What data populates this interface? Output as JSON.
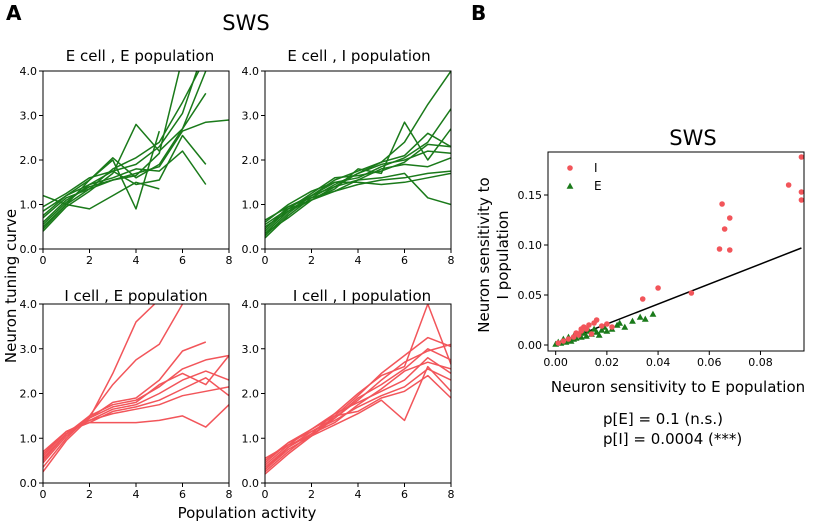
{
  "figure": {
    "panel_a_letter": "A",
    "panel_b_letter": "B",
    "panel_a_title": "SWS",
    "panel_b_title": "SWS",
    "panel_a_ylabel": "Neuron tuning curve",
    "panel_a_xlabel": "Population activity",
    "panel_b_xlabel": "Neuron sensitivity to E population",
    "panel_b_ylabel_line1": "Neuron sensitivity to",
    "panel_b_ylabel_line2": "I population",
    "stat_e": "p[E] = 0.1 (n.s.)",
    "stat_i": "p[I] = 0.0004 (***)",
    "colors": {
      "E": "#1a7a1a",
      "I": "#f2555a",
      "fit": "#000000"
    }
  },
  "chart_data": [
    {
      "type": "line",
      "title": "E cell , E population",
      "xlim": [
        0,
        8
      ],
      "ylim": [
        0,
        4
      ],
      "xticks": [
        "0",
        "2",
        "4",
        "6",
        "8"
      ],
      "yticks": [
        "0.0",
        "1.0",
        "2.0",
        "3.0",
        "4.0"
      ],
      "color": "E",
      "series": [
        {
          "x": [
            0,
            1,
            2,
            3,
            4,
            5,
            6,
            7
          ],
          "y": [
            0.45,
            1.0,
            1.35,
            1.8,
            2.05,
            2.4,
            3.3,
            4.3
          ]
        },
        {
          "x": [
            0,
            1,
            2,
            3,
            4,
            5,
            6,
            7
          ],
          "y": [
            0.55,
            1.05,
            1.45,
            1.75,
            1.9,
            2.3,
            3.05,
            4.6
          ]
        },
        {
          "x": [
            0,
            1,
            2,
            3,
            4,
            5,
            6
          ],
          "y": [
            0.6,
            1.1,
            1.4,
            1.55,
            1.65,
            2.15,
            4.3
          ]
        },
        {
          "x": [
            0,
            1,
            2,
            3,
            4,
            5,
            6,
            7,
            8
          ],
          "y": [
            0.7,
            1.15,
            1.35,
            1.55,
            1.7,
            1.85,
            2.65,
            2.85,
            2.9
          ]
        },
        {
          "x": [
            0,
            1,
            2,
            3,
            4,
            5,
            6,
            7
          ],
          "y": [
            0.75,
            1.2,
            1.45,
            1.6,
            1.8,
            1.75,
            2.2,
            1.45
          ]
        },
        {
          "x": [
            0,
            1,
            2,
            3,
            4,
            5
          ],
          "y": [
            0.85,
            1.2,
            1.55,
            2.0,
            0.9,
            2.65
          ]
        },
        {
          "x": [
            0,
            1,
            2,
            3,
            4,
            5,
            6,
            7
          ],
          "y": [
            0.95,
            1.25,
            1.6,
            1.75,
            1.45,
            1.55,
            2.55,
            1.9
          ]
        },
        {
          "x": [
            0,
            1,
            2,
            3,
            4,
            5
          ],
          "y": [
            1.2,
            1.0,
            0.9,
            1.2,
            1.5,
            1.35
          ]
        },
        {
          "x": [
            0,
            1,
            2,
            3,
            4,
            5,
            6,
            7
          ],
          "y": [
            0.5,
            1.0,
            1.55,
            2.05,
            1.6,
            1.9,
            2.7,
            3.5
          ]
        },
        {
          "x": [
            0,
            1,
            2,
            3,
            4,
            5,
            6,
            7,
            8
          ],
          "y": [
            0.4,
            0.95,
            1.3,
            1.7,
            2.8,
            2.2,
            2.7,
            4.0,
            4.3
          ]
        }
      ]
    },
    {
      "type": "line",
      "title": "E cell , I population",
      "xlim": [
        0,
        8
      ],
      "ylim": [
        0,
        4
      ],
      "xticks": [
        "0",
        "2",
        "4",
        "6",
        "8"
      ],
      "yticks": [
        "0.0",
        "1.0",
        "2.0",
        "3.0",
        "4.0"
      ],
      "color": "E",
      "series": [
        {
          "x": [
            0,
            1,
            2,
            3,
            4,
            5,
            6,
            7,
            8
          ],
          "y": [
            0.25,
            0.75,
            1.15,
            1.45,
            1.7,
            1.95,
            2.4,
            3.25,
            4.0
          ]
        },
        {
          "x": [
            0,
            1,
            2,
            3,
            4,
            5,
            6,
            7,
            8
          ],
          "y": [
            0.3,
            0.8,
            1.2,
            1.5,
            1.6,
            1.85,
            2.05,
            2.4,
            3.15
          ]
        },
        {
          "x": [
            0,
            1,
            2,
            3,
            4,
            5,
            6,
            7,
            8
          ],
          "y": [
            0.35,
            0.85,
            1.1,
            1.35,
            1.8,
            1.7,
            2.85,
            2.0,
            2.7
          ]
        },
        {
          "x": [
            0,
            1,
            2,
            3,
            4,
            5,
            6,
            7,
            8
          ],
          "y": [
            0.4,
            0.9,
            1.25,
            1.6,
            1.65,
            1.75,
            1.95,
            2.35,
            2.3
          ]
        },
        {
          "x": [
            0,
            1,
            2,
            3,
            4,
            5,
            6,
            7,
            8
          ],
          "y": [
            0.45,
            0.95,
            1.2,
            1.4,
            1.55,
            1.8,
            1.9,
            1.85,
            2.05
          ]
        },
        {
          "x": [
            0,
            1,
            2,
            3,
            4,
            5,
            6,
            7,
            8
          ],
          "y": [
            0.55,
            0.9,
            1.1,
            1.3,
            1.45,
            1.55,
            1.6,
            1.7,
            1.75
          ]
        },
        {
          "x": [
            0,
            1,
            2,
            3,
            4,
            5,
            6,
            7,
            8
          ],
          "y": [
            0.6,
            1.0,
            1.3,
            1.5,
            1.5,
            1.45,
            1.5,
            1.6,
            1.7
          ]
        },
        {
          "x": [
            0,
            1,
            2,
            3,
            4,
            5,
            6,
            7,
            8
          ],
          "y": [
            0.5,
            0.85,
            1.2,
            1.55,
            1.75,
            1.95,
            2.1,
            2.6,
            2.3
          ]
        },
        {
          "x": [
            0,
            1,
            2,
            3,
            4,
            5,
            6,
            7,
            8
          ],
          "y": [
            0.65,
            0.95,
            1.15,
            1.3,
            1.55,
            1.6,
            1.7,
            1.15,
            1.0
          ]
        },
        {
          "x": [
            0,
            1,
            2,
            3,
            4,
            5,
            6,
            7,
            8
          ],
          "y": [
            0.35,
            0.7,
            1.1,
            1.4,
            1.7,
            1.9,
            2.0,
            2.2,
            2.15
          ]
        }
      ]
    },
    {
      "type": "line",
      "title": "I cell , E population",
      "xlim": [
        0,
        8
      ],
      "ylim": [
        0,
        4
      ],
      "xticks": [
        "0",
        "2",
        "4",
        "6",
        "8"
      ],
      "yticks": [
        "0.0",
        "1.0",
        "2.0",
        "3.0",
        "4.0"
      ],
      "color": "I",
      "series": [
        {
          "x": [
            0,
            1,
            2,
            3,
            4,
            5
          ],
          "y": [
            0.25,
            0.95,
            1.45,
            2.45,
            3.6,
            4.1
          ]
        },
        {
          "x": [
            0,
            1,
            2,
            3,
            4,
            5,
            6
          ],
          "y": [
            0.35,
            1.0,
            1.5,
            2.2,
            2.75,
            3.1,
            4.0
          ]
        },
        {
          "x": [
            0,
            1,
            2,
            3,
            4,
            5,
            6,
            7
          ],
          "y": [
            0.45,
            1.05,
            1.45,
            1.8,
            1.9,
            2.3,
            2.95,
            3.15
          ]
        },
        {
          "x": [
            0,
            1,
            2,
            3,
            4,
            5,
            6,
            7,
            8
          ],
          "y": [
            0.5,
            1.1,
            1.5,
            1.75,
            1.85,
            2.15,
            2.55,
            2.75,
            2.85
          ]
        },
        {
          "x": [
            0,
            1,
            2,
            3,
            4,
            5,
            6,
            7,
            8
          ],
          "y": [
            0.55,
            1.1,
            1.4,
            1.65,
            1.75,
            2.0,
            2.3,
            2.5,
            2.3
          ]
        },
        {
          "x": [
            0,
            1,
            2,
            3,
            4,
            5,
            6,
            7,
            8
          ],
          "y": [
            0.6,
            1.15,
            1.35,
            1.6,
            1.7,
            1.85,
            2.1,
            2.35,
            1.95
          ]
        },
        {
          "x": [
            0,
            1,
            2,
            3,
            4,
            5,
            6,
            7,
            8
          ],
          "y": [
            0.65,
            1.15,
            1.4,
            1.55,
            1.65,
            1.75,
            1.95,
            2.05,
            2.15
          ]
        },
        {
          "x": [
            0,
            1,
            2,
            3,
            4,
            5,
            6,
            7,
            8
          ],
          "y": [
            0.7,
            1.15,
            1.35,
            1.35,
            1.35,
            1.4,
            1.5,
            1.25,
            1.75
          ]
        },
        {
          "x": [
            0,
            1,
            2,
            3,
            4,
            5,
            6,
            7,
            8
          ],
          "y": [
            0.55,
            1.1,
            1.45,
            1.7,
            1.8,
            2.2,
            2.45,
            2.2,
            2.85
          ]
        }
      ]
    },
    {
      "type": "line",
      "title": "I cell , I population",
      "xlim": [
        0,
        8
      ],
      "ylim": [
        0,
        4
      ],
      "xticks": [
        "0",
        "2",
        "4",
        "6",
        "8"
      ],
      "yticks": [
        "0.0",
        "1.0",
        "2.0",
        "3.0",
        "4.0"
      ],
      "color": "I",
      "series": [
        {
          "x": [
            0,
            1,
            2,
            3,
            4,
            5,
            6,
            7,
            8
          ],
          "y": [
            0.2,
            0.65,
            1.05,
            1.5,
            1.95,
            2.45,
            2.85,
            3.25,
            3.05
          ]
        },
        {
          "x": [
            0,
            1,
            2,
            3,
            4,
            5,
            6,
            7,
            8
          ],
          "y": [
            0.25,
            0.7,
            1.1,
            1.55,
            2.0,
            2.4,
            2.6,
            4.0,
            2.65
          ]
        },
        {
          "x": [
            0,
            1,
            2,
            3,
            4,
            5,
            6,
            7,
            8
          ],
          "y": [
            0.3,
            0.75,
            1.05,
            1.45,
            1.85,
            2.3,
            2.7,
            2.95,
            3.1
          ]
        },
        {
          "x": [
            0,
            1,
            2,
            3,
            4,
            5,
            6,
            7,
            8
          ],
          "y": [
            0.35,
            0.8,
            1.15,
            1.45,
            1.9,
            2.2,
            2.55,
            3.0,
            2.75
          ]
        },
        {
          "x": [
            0,
            1,
            2,
            3,
            4,
            5,
            6,
            7,
            8
          ],
          "y": [
            0.4,
            0.85,
            1.2,
            1.55,
            1.8,
            2.05,
            2.3,
            2.8,
            2.45
          ]
        },
        {
          "x": [
            0,
            1,
            2,
            3,
            4,
            5,
            6,
            7,
            8
          ],
          "y": [
            0.45,
            0.9,
            1.15,
            1.4,
            1.7,
            1.95,
            2.15,
            2.55,
            2.3
          ]
        },
        {
          "x": [
            0,
            1,
            2,
            3,
            4,
            5,
            6,
            7,
            8
          ],
          "y": [
            0.5,
            0.9,
            1.2,
            1.5,
            1.6,
            1.9,
            2.05,
            2.4,
            1.9
          ]
        },
        {
          "x": [
            0,
            1,
            2,
            3,
            4,
            5,
            6,
            7,
            8
          ],
          "y": [
            0.55,
            0.85,
            1.05,
            1.3,
            1.55,
            1.85,
            1.4,
            2.6,
            2.05
          ]
        },
        {
          "x": [
            0,
            1,
            2,
            3,
            4,
            5,
            6,
            7,
            8
          ],
          "y": [
            0.3,
            0.8,
            1.1,
            1.35,
            1.75,
            2.1,
            2.5,
            2.7,
            2.55
          ]
        }
      ]
    },
    {
      "type": "scatter",
      "xlim": [
        -0.003,
        0.097
      ],
      "ylim": [
        -0.006,
        0.193
      ],
      "xticks": [
        "0.00",
        "0.02",
        "0.04",
        "0.06",
        "0.08"
      ],
      "yticks": [
        "0.00",
        "0.05",
        "0.10",
        "0.15"
      ],
      "legend": [
        {
          "label": "I",
          "color": "I"
        },
        {
          "label": "E",
          "color": "E"
        }
      ],
      "legend_position": "top-left",
      "fit_line": {
        "x": [
          0.0,
          0.096
        ],
        "y": [
          0.001,
          0.097
        ]
      },
      "series": [
        {
          "name": "I",
          "color": "I",
          "marker": "circle",
          "x": [
            0.001,
            0.003,
            0.005,
            0.007,
            0.008,
            0.009,
            0.01,
            0.011,
            0.012,
            0.013,
            0.014,
            0.015,
            0.016,
            0.018,
            0.02,
            0.022,
            0.01,
            0.034,
            0.04,
            0.053,
            0.064,
            0.065,
            0.066,
            0.068,
            0.068,
            0.091,
            0.096,
            0.096,
            0.096
          ],
          "y": [
            0.002,
            0.004,
            0.006,
            0.008,
            0.012,
            0.01,
            0.014,
            0.018,
            0.016,
            0.02,
            0.011,
            0.022,
            0.025,
            0.019,
            0.021,
            0.018,
            0.016,
            0.046,
            0.057,
            0.052,
            0.096,
            0.141,
            0.116,
            0.095,
            0.127,
            0.16,
            0.188,
            0.153,
            0.145
          ]
        },
        {
          "name": "E",
          "color": "E",
          "marker": "triangle",
          "x": [
            0.0,
            0.001,
            0.002,
            0.003,
            0.003,
            0.004,
            0.005,
            0.005,
            0.006,
            0.007,
            0.007,
            0.008,
            0.009,
            0.01,
            0.011,
            0.012,
            0.013,
            0.014,
            0.015,
            0.016,
            0.017,
            0.018,
            0.019,
            0.02,
            0.022,
            0.024,
            0.025,
            0.027,
            0.03,
            0.033,
            0.035,
            0.038
          ],
          "y": [
            0.001,
            0.003,
            0.002,
            0.004,
            0.006,
            0.003,
            0.005,
            0.008,
            0.004,
            0.006,
            0.009,
            0.007,
            0.01,
            0.008,
            0.012,
            0.009,
            0.014,
            0.011,
            0.016,
            0.013,
            0.01,
            0.015,
            0.018,
            0.014,
            0.016,
            0.02,
            0.022,
            0.018,
            0.024,
            0.028,
            0.026,
            0.031
          ]
        }
      ]
    }
  ]
}
